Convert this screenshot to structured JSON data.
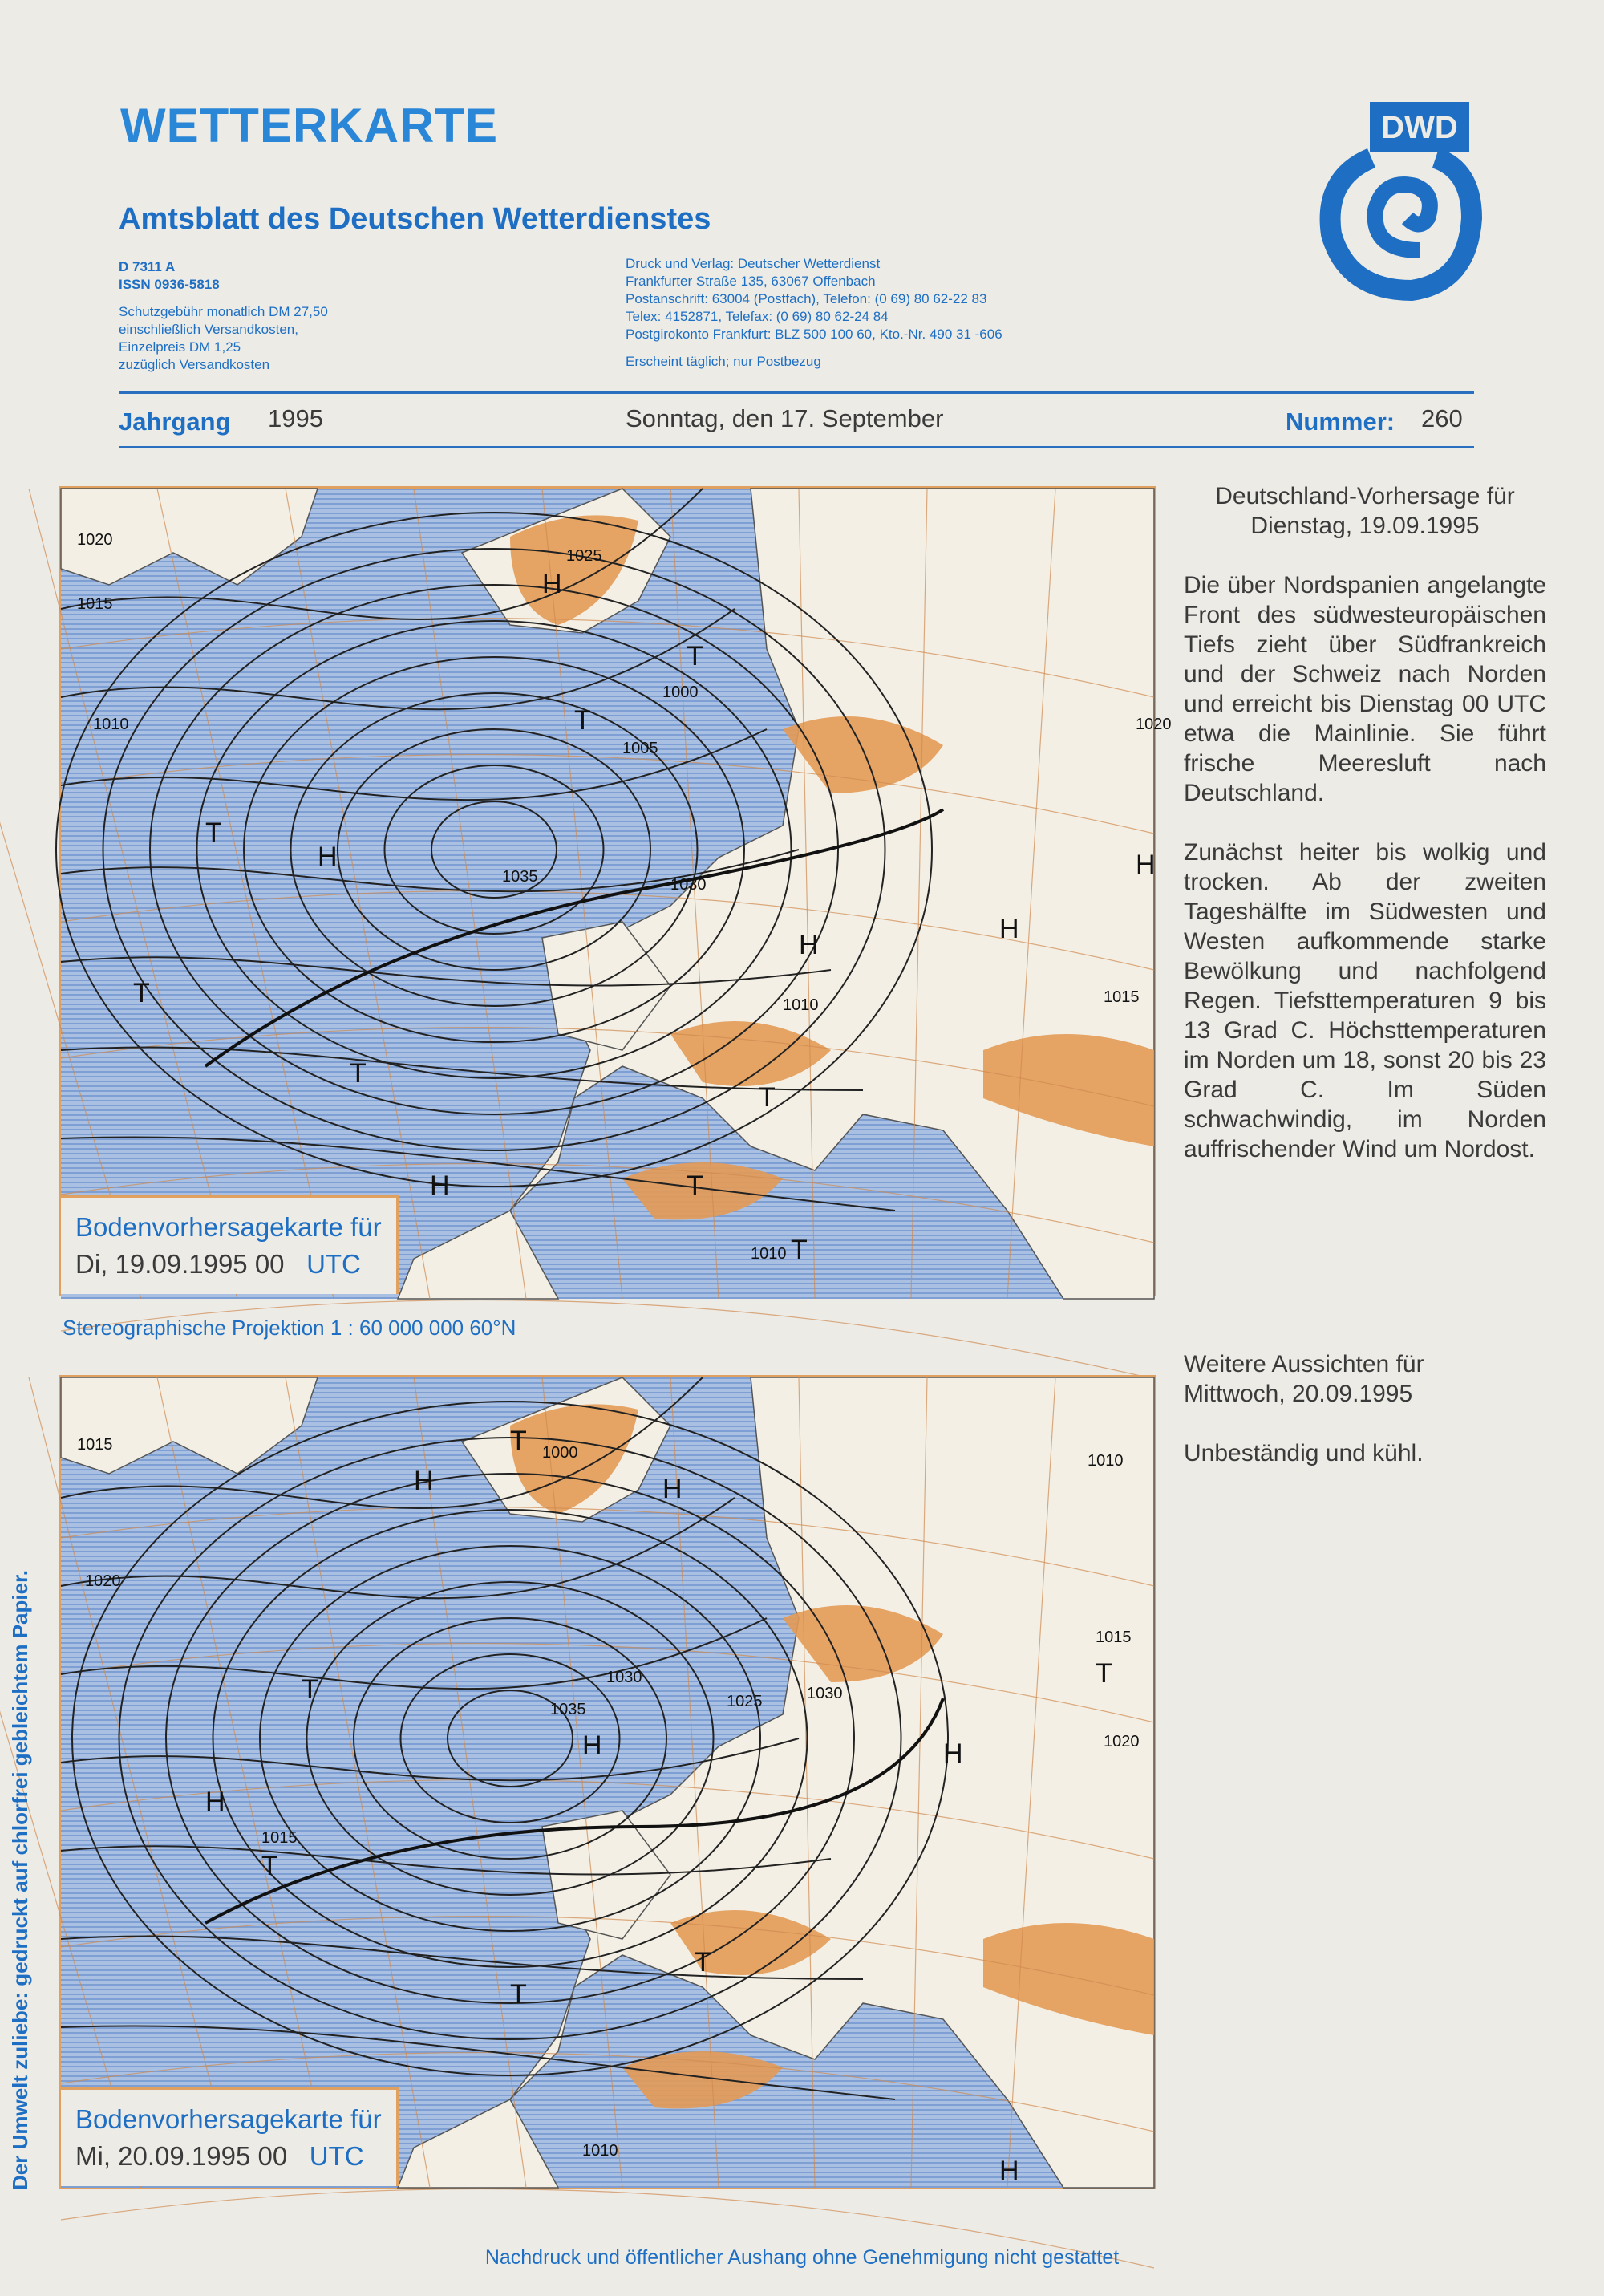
{
  "header": {
    "title": "WETTERKARTE",
    "subtitle": "Amtsblatt des Deutschen Wetterdienstes",
    "logo_text": "DWD",
    "left_info": [
      "D 7311 A",
      "ISSN 0936-5818"
    ],
    "fee": [
      "Schutzgebühr monatlich DM 27,50",
      "einschließlich Versandkosten,",
      "Einzelpreis DM 1,25",
      "zuzüglich Versandkosten"
    ],
    "publisher": [
      "Druck und Verlag: Deutscher Wetterdienst",
      "Frankfurter Straße 135, 63067 Offenbach",
      "Postanschrift: 63004 (Postfach), Telefon: (0 69) 80 62-22 83",
      "Telex: 4152871, Telefax: (0 69) 80 62-24 84",
      "Postgirokonto Frankfurt: BLZ 500 100 60, Kto.-Nr. 490 31 -606"
    ],
    "frequency": "Erscheint täglich; nur Postbezug",
    "jahrgang_label": "Jahrgang",
    "jahrgang": "1995",
    "date": "Sonntag, den 17. September",
    "nummer_label": "Nummer:",
    "nummer": "260"
  },
  "map1": {
    "legend_title": "Bodenvorhersagekarte für",
    "legend_date": "Di, 19.09.1995 00",
    "legend_utc": "UTC",
    "labels": [
      "H",
      "T",
      "H",
      "T",
      "T",
      "T",
      "H",
      "H",
      "H",
      "T",
      "T",
      "H",
      "T",
      "T",
      "1020",
      "1015",
      "1010",
      "1025",
      "1005",
      "1000",
      "1035",
      "1030",
      "1010",
      "1015",
      "1010",
      "1020"
    ]
  },
  "projection": "Stereographische Projektion   1 : 60 000 000  60°N",
  "map2": {
    "legend_title": "Bodenvorhersagekarte für",
    "legend_date": "Mi, 20.09.1995 00",
    "legend_utc": "UTC",
    "labels": [
      "H",
      "T",
      "H",
      "T",
      "H",
      "T",
      "H",
      "T",
      "T",
      "H",
      "T",
      "H",
      "1015",
      "1010",
      "1015",
      "1020",
      "1000",
      "1030",
      "1035",
      "1025",
      "1030",
      "1015",
      "1020",
      "1010"
    ]
  },
  "forecast": {
    "heading": [
      "Deutschland-Vorhersage für",
      "Dienstag, 19.09.1995"
    ],
    "p1": "Die über Nordspanien angelangte Front des südwesteuropäischen Tiefs zieht über Südfrankreich und der Schweiz nach Norden und erreicht bis Dienstag 00 UTC etwa die Mainlinie. Sie führt frische Meeresluft nach Deutschland.",
    "p2": "Zunächst heiter bis wolkig und trocken. Ab der zweiten Tageshälfte im Südwesten und Westen aufkommende starke Bewölkung und nachfolgend Regen. Tiefsttemperaturen 9 bis 13 Grad C. Höchsttemperaturen im Norden um 18, sonst 20 bis 23 Grad C. Im Süden schwachwindig, im Norden auffrischender Wind um Nordost."
  },
  "outlook": {
    "heading": [
      "Weitere Aussichten für",
      "Mittwoch, 20.09.1995"
    ],
    "text": "Unbeständig und kühl."
  },
  "side_note": "Der Umwelt zuliebe: gedruckt auf chlorfrei gebleichtem Papier.",
  "footer": "Nachdruck und öffentlicher Aushang ohne Genehmigung nicht gestattet",
  "colors": {
    "brand_blue": "#1e6fc4",
    "land_orange": "#e39a55",
    "sea_blue": "#9cb6dd"
  }
}
